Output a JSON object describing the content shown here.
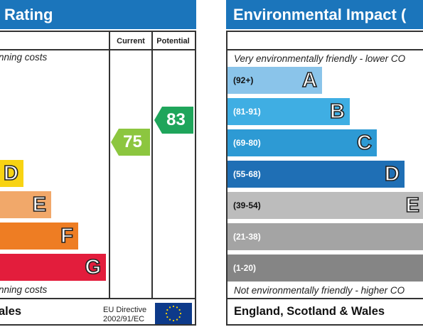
{
  "energy": {
    "title": "Rating",
    "columns": {
      "current": "Current",
      "potential": "Potential"
    },
    "top_caption": "nning costs",
    "bottom_caption": "nning costs",
    "bands": [
      {
        "letter": "D",
        "color": "#f8d313"
      },
      {
        "letter": "E",
        "color": "#f1a86a"
      },
      {
        "letter": "F",
        "color": "#ee7d23"
      },
      {
        "letter": "G",
        "color": "#e31d3c"
      }
    ],
    "current": {
      "value": "75",
      "color": "#8cc63f"
    },
    "potential": {
      "value": "83",
      "color": "#1fa55b"
    },
    "footer": "ales",
    "directive_line1": "EU Directive",
    "directive_line2": "2002/91/EC"
  },
  "environment": {
    "title": "Environmental Impact (",
    "top_caption": "Very environmentally friendly - lower CO",
    "bottom_caption": "Not environmentally friendly - higher CO",
    "bands": [
      {
        "range": "(92+)",
        "letter": "A",
        "color": "#8ac4ea"
      },
      {
        "range": "(81-91)",
        "letter": "B",
        "color": "#3faee3"
      },
      {
        "range": "(69-80)",
        "letter": "C",
        "color": "#2d9ad4"
      },
      {
        "range": "(55-68)",
        "letter": "D",
        "color": "#1f6fb5"
      },
      {
        "range": "(39-54)",
        "letter": "E",
        "color": "#bcbcbc"
      },
      {
        "range": "(21-38)",
        "letter": "",
        "color": "#a4a4a4"
      },
      {
        "range": "(1-20)",
        "letter": "",
        "color": "#858585"
      }
    ],
    "footer": "England, Scotland & Wales"
  }
}
